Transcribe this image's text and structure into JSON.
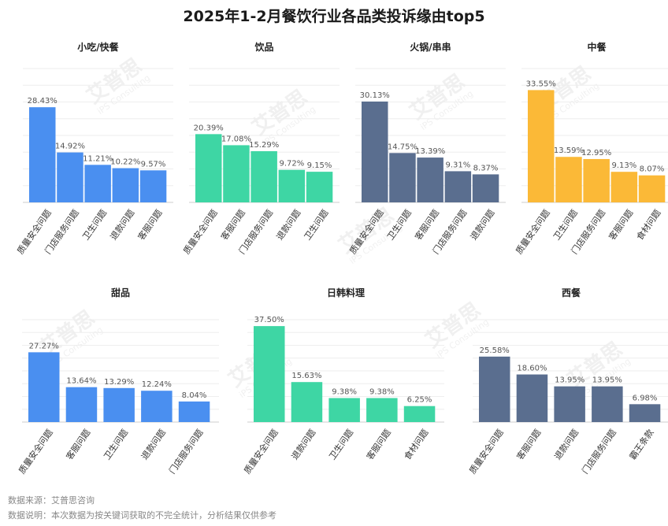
{
  "title": "2025年1-2月餐饮行业各品类投诉缘由top5",
  "footnotes": {
    "source": "数据来源：艾普思咨询",
    "note": "数据说明：本次数据为按关键词获取的不完全统计，分析结果仅供参考"
  },
  "watermark": {
    "brand": "艾普思",
    "sub": "iPS Consulting"
  },
  "colors": {
    "blue": "#4a8ff0",
    "green": "#3ed6a4",
    "slate": "#5a6e8f",
    "yellow": "#fbb937",
    "grid": "#eeeeee",
    "axis": "#cccccc"
  },
  "chart_data": [
    {
      "type": "bar",
      "title": "小吃/快餐",
      "color_key": "blue",
      "categories": [
        "质量安全问题",
        "门店服务问题",
        "卫生问题",
        "退款问题",
        "客服问题"
      ],
      "values": [
        28.43,
        14.92,
        11.21,
        10.22,
        9.57
      ],
      "labels": [
        "28.43%",
        "14.92%",
        "11.21%",
        "10.22%",
        "9.57%"
      ]
    },
    {
      "type": "bar",
      "title": "饮品",
      "color_key": "green",
      "categories": [
        "质量安全问题",
        "客服问题",
        "门店服务问题",
        "退款问题",
        "卫生问题"
      ],
      "values": [
        20.39,
        17.08,
        15.29,
        9.72,
        9.15
      ],
      "labels": [
        "20.39%",
        "17.08%",
        "15.29%",
        "9.72%",
        "9.15%"
      ]
    },
    {
      "type": "bar",
      "title": "火锅/串串",
      "color_key": "slate",
      "categories": [
        "质量安全问题",
        "卫生问题",
        "客服问题",
        "门店服务问题",
        "退款问题"
      ],
      "values": [
        30.13,
        14.75,
        13.39,
        9.31,
        8.37
      ],
      "labels": [
        "30.13%",
        "14.75%",
        "13.39%",
        "9.31%",
        "8.37%"
      ]
    },
    {
      "type": "bar",
      "title": "中餐",
      "color_key": "yellow",
      "categories": [
        "质量安全问题",
        "卫生问题",
        "门店服务问题",
        "客服问题",
        "食材问题"
      ],
      "values": [
        33.55,
        13.59,
        12.95,
        9.13,
        8.07
      ],
      "labels": [
        "33.55%",
        "13.59%",
        "12.95%",
        "9.13%",
        "8.07%"
      ]
    },
    {
      "type": "bar",
      "title": "甜品",
      "color_key": "blue",
      "categories": [
        "质量安全问题",
        "客服问题",
        "卫生问题",
        "退款问题",
        "门店服务问题"
      ],
      "values": [
        27.27,
        13.64,
        13.29,
        12.24,
        8.04
      ],
      "labels": [
        "27.27%",
        "13.64%",
        "13.29%",
        "12.24%",
        "8.04%"
      ]
    },
    {
      "type": "bar",
      "title": "日韩料理",
      "color_key": "green",
      "categories": [
        "质量安全问题",
        "退款问题",
        "卫生问题",
        "客服问题",
        "食材问题"
      ],
      "values": [
        37.5,
        15.63,
        9.38,
        9.38,
        6.25
      ],
      "labels": [
        "37.50%",
        "15.63%",
        "9.38%",
        "9.38%",
        "6.25%"
      ]
    },
    {
      "type": "bar",
      "title": "西餐",
      "color_key": "slate",
      "categories": [
        "质量安全问题",
        "客服问题",
        "退款问题",
        "门店服务问题",
        "霸王条款"
      ],
      "values": [
        25.58,
        18.6,
        13.95,
        13.95,
        6.98
      ],
      "labels": [
        "25.58%",
        "18.60%",
        "13.95%",
        "13.95%",
        "6.98%"
      ]
    }
  ]
}
